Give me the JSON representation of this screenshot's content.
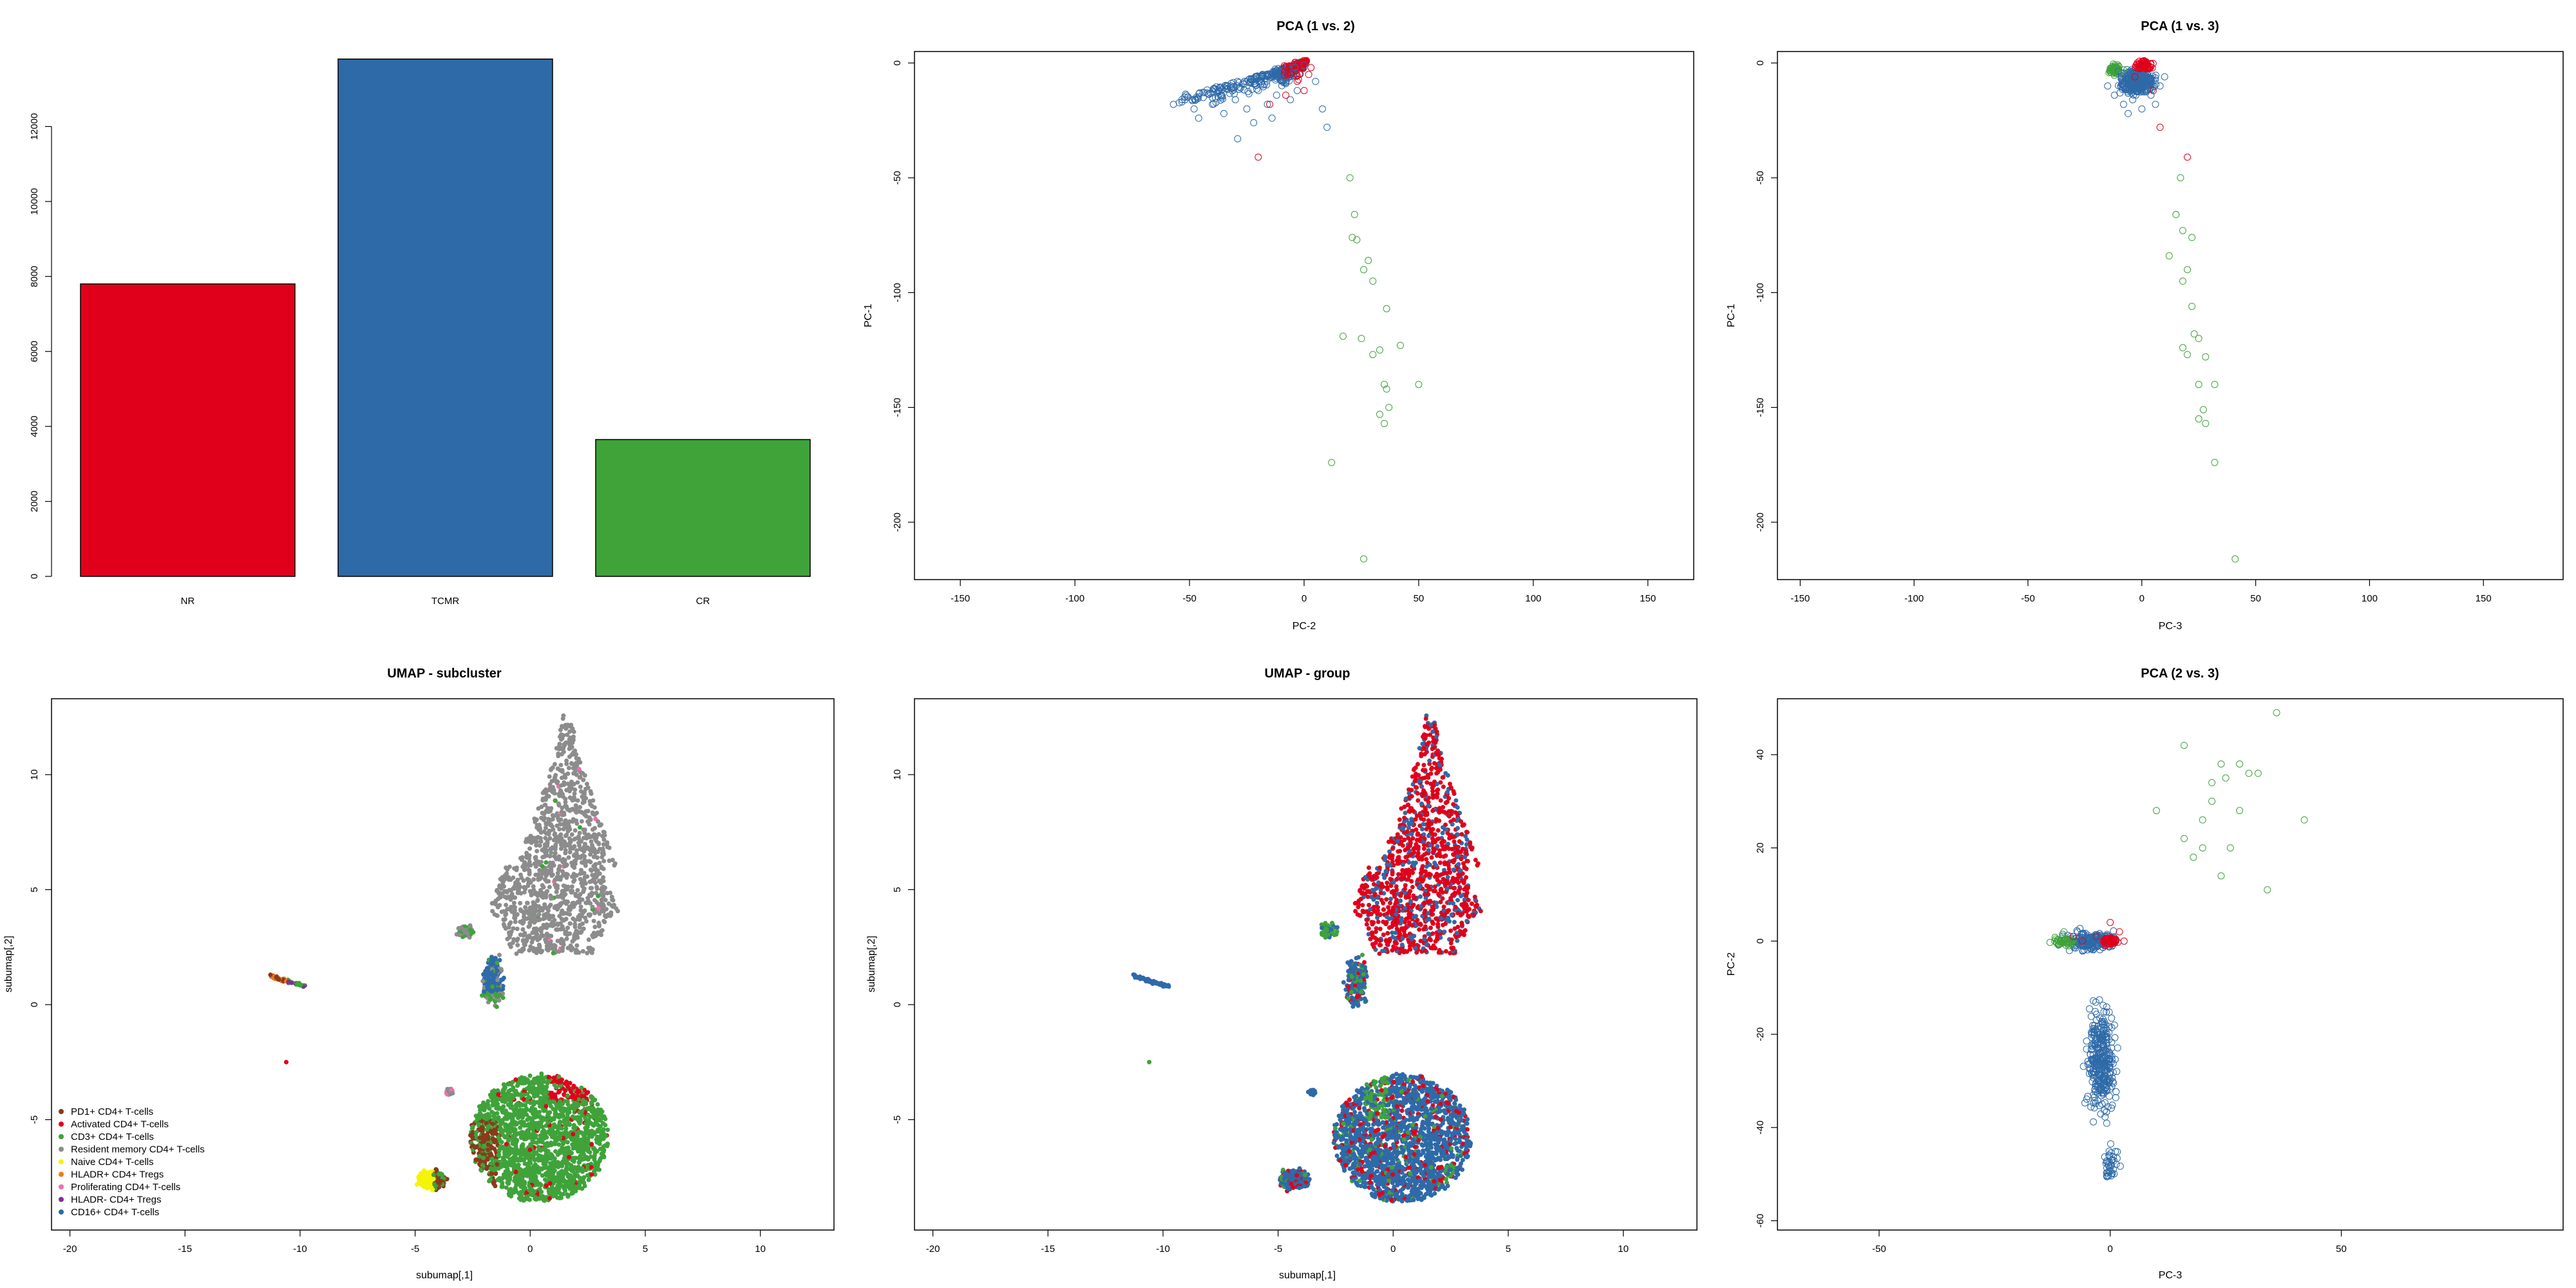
{
  "chart_data": [
    {
      "id": "bar",
      "type": "bar",
      "title": "",
      "categories": [
        "NR",
        "TCMR",
        "CR"
      ],
      "values": [
        7800,
        13800,
        3650
      ],
      "colors": [
        "#e0001b",
        "#2e6aa8",
        "#3fa33a"
      ],
      "ylim": [
        0,
        14000
      ],
      "yticks": [
        0,
        2000,
        4000,
        6000,
        8000,
        10000,
        12000
      ]
    },
    {
      "id": "pca12",
      "type": "scatter",
      "title": "PCA (1 vs. 2)",
      "xlabel": "PC-2",
      "ylabel": "PC-1",
      "xlim": [
        -170,
        170
      ],
      "ylim": [
        -225,
        5
      ],
      "xticks": [
        -150,
        -100,
        -50,
        0,
        50,
        100,
        150
      ],
      "yticks": [
        0,
        -50,
        -100,
        -150,
        -200
      ],
      "series": [
        {
          "color": "#3fa33a",
          "points": [
            [
              20,
              -50
            ],
            [
              22,
              -66
            ],
            [
              21,
              -76
            ],
            [
              23,
              -77
            ],
            [
              28,
              -86
            ],
            [
              26,
              -90
            ],
            [
              30,
              -95
            ],
            [
              36,
              -107
            ],
            [
              17,
              -119
            ],
            [
              25,
              -120
            ],
            [
              30,
              -127
            ],
            [
              33,
              -125
            ],
            [
              42,
              -123
            ],
            [
              35,
              -140
            ],
            [
              36,
              -142
            ],
            [
              50,
              -140
            ],
            [
              33,
              -153
            ],
            [
              35,
              -157
            ],
            [
              37,
              -150
            ],
            [
              12,
              -174
            ],
            [
              26,
              -216
            ]
          ]
        },
        {
          "color": "#2e6aa8",
          "points": [
            [
              -57,
              -18
            ],
            [
              -52,
              -16
            ],
            [
              -48,
              -20
            ],
            [
              -46,
              -24
            ],
            [
              -44,
              -15
            ],
            [
              -40,
              -18
            ],
            [
              -38,
              -13
            ],
            [
              -35,
              -22
            ],
            [
              -32,
              -10
            ],
            [
              -30,
              -16
            ],
            [
              -29,
              -33
            ],
            [
              -26,
              -8
            ],
            [
              -25,
              -20
            ],
            [
              -22,
              -26
            ],
            [
              -20,
              -12
            ],
            [
              -18,
              -6
            ],
            [
              -16,
              -18
            ],
            [
              -14,
              -24
            ],
            [
              -12,
              -14
            ],
            [
              -10,
              -4
            ],
            [
              -8,
              -9
            ],
            [
              -6,
              -16
            ],
            [
              -4,
              -2
            ],
            [
              -3,
              -12
            ],
            [
              -2,
              -5
            ],
            [
              0,
              -1
            ],
            [
              5,
              -8
            ],
            [
              8,
              -20
            ],
            [
              10,
              -28
            ]
          ]
        },
        {
          "color": "#e0001b",
          "points": [
            [
              -20,
              -41
            ],
            [
              -15,
              -18
            ],
            [
              -8,
              -14
            ],
            [
              -3,
              -8
            ],
            [
              0,
              -12
            ],
            [
              2,
              -5
            ],
            [
              3,
              -2
            ],
            [
              -1,
              0
            ]
          ]
        }
      ],
      "fans": [
        {
          "color": "#2e6aa8",
          "tip": [
            0,
            0
          ],
          "upper": [
            [
              -55,
              -15
            ],
            [
              -40,
              -11
            ],
            [
              -25,
              -7
            ],
            [
              -10,
              -3
            ]
          ],
          "lower": [
            [
              -55,
              -19
            ],
            [
              -40,
              -18
            ],
            [
              -25,
              -15
            ],
            [
              -10,
              -11
            ]
          ],
          "count": 320,
          "jitter": 4
        },
        {
          "color": "#e0001b",
          "tip": [
            1,
            1
          ],
          "upper": [
            [
              -10,
              -1
            ],
            [
              -5,
              0
            ]
          ],
          "lower": [
            [
              -8,
              -8
            ],
            [
              -3,
              -9
            ]
          ],
          "count": 60,
          "jitter": 2
        }
      ]
    },
    {
      "id": "pca13",
      "type": "scatter",
      "title": "PCA (1 vs. 3)",
      "xlabel": "PC-3",
      "ylabel": "PC-1",
      "xlim": [
        -160,
        185
      ],
      "ylim": [
        -225,
        5
      ],
      "xticks": [
        -150,
        -100,
        -50,
        0,
        50,
        100,
        150
      ],
      "yticks": [
        0,
        -50,
        -100,
        -150,
        -200
      ],
      "series": [
        {
          "color": "#3fa33a",
          "points": [
            [
              17,
              -50
            ],
            [
              15,
              -66
            ],
            [
              18,
              -73
            ],
            [
              22,
              -76
            ],
            [
              12,
              -84
            ],
            [
              20,
              -90
            ],
            [
              18,
              -95
            ],
            [
              22,
              -106
            ],
            [
              23,
              -118
            ],
            [
              25,
              -120
            ],
            [
              18,
              -124
            ],
            [
              20,
              -127
            ],
            [
              28,
              -128
            ],
            [
              25,
              -140
            ],
            [
              32,
              -140
            ],
            [
              27,
              -151
            ],
            [
              25,
              -155
            ],
            [
              28,
              -157
            ],
            [
              32,
              -174
            ],
            [
              41,
              -216
            ],
            [
              -10,
              -5
            ],
            [
              -8,
              -3
            ]
          ]
        },
        {
          "color": "#2e6aa8",
          "points": [
            [
              -15,
              -10
            ],
            [
              -12,
              -14
            ],
            [
              -8,
              -18
            ],
            [
              -6,
              -22
            ],
            [
              -4,
              -16
            ],
            [
              -2,
              -12
            ],
            [
              0,
              -20
            ],
            [
              2,
              -8
            ],
            [
              4,
              -14
            ],
            [
              6,
              -18
            ],
            [
              8,
              -10
            ],
            [
              10,
              -6
            ]
          ]
        },
        {
          "color": "#e0001b",
          "points": [
            [
              -2,
              0
            ],
            [
              1,
              1
            ],
            [
              3,
              -2
            ],
            [
              5,
              -12
            ],
            [
              -3,
              -6
            ],
            [
              20,
              -41
            ],
            [
              8,
              -28
            ]
          ]
        }
      ],
      "blob": {
        "color": "#2e6aa8",
        "center": [
          -2,
          -8
        ],
        "rx": 14,
        "ry": 10,
        "count": 380
      }
    },
    {
      "id": "umap_sub",
      "type": "scatter",
      "title": "UMAP - subcluster",
      "xlabel": "subumap[,1]",
      "ylabel": "subumap[,2]",
      "xlim": [
        -20.8,
        13.2
      ],
      "ylim": [
        -9.8,
        13.3
      ],
      "xticks": [
        -20,
        -15,
        -10,
        -5,
        0,
        5,
        10
      ],
      "yticks": [
        -5,
        0,
        5,
        10
      ],
      "legend_position": "bottom-left",
      "legend": [
        {
          "label": "PD1+ CD4+ T-cells",
          "color": "#8b3a1b"
        },
        {
          "label": "Activated CD4+ T-cells",
          "color": "#e0001b"
        },
        {
          "label": "CD3+ CD4+ T-cells",
          "color": "#3fa33a"
        },
        {
          "label": "Resident memory CD4+ T-cells",
          "color": "#8c8c8c"
        },
        {
          "label": "Naive CD4+ T-cells",
          "color": "#f5f500"
        },
        {
          "label": "HLADR+ CD4+ Tregs",
          "color": "#f07d12"
        },
        {
          "label": "Proliferating CD4+ T-cells",
          "color": "#ef6fb0"
        },
        {
          "label": "HLADR- CD4+ Tregs",
          "color": "#7b3294"
        },
        {
          "label": "CD16+ CD4+ T-cells",
          "color": "#2e6aa8"
        }
      ]
    },
    {
      "id": "umap_group",
      "type": "scatter",
      "title": "UMAP - group",
      "xlabel": "subumap[,1]",
      "ylabel": "subumap[,2]",
      "xlim": [
        -20.8,
        13.2
      ],
      "ylim": [
        -9.8,
        13.3
      ],
      "xticks": [
        -20,
        -15,
        -10,
        -5,
        0,
        5,
        10
      ],
      "yticks": [
        -5,
        0,
        5,
        10
      ]
    },
    {
      "id": "pca23",
      "type": "scatter",
      "title": "PCA (2 vs. 3)",
      "xlabel": "PC-3",
      "ylabel": "PC-2",
      "xlim": [
        -72,
        98
      ],
      "ylim": [
        -62,
        52
      ],
      "xticks": [
        -50,
        0,
        50
      ],
      "yticks": [
        -60,
        -40,
        -20,
        0,
        20,
        40
      ],
      "series": [
        {
          "color": "#3fa33a",
          "points": [
            [
              10,
              28
            ],
            [
              16,
              22
            ],
            [
              18,
              18
            ],
            [
              20,
              20
            ],
            [
              20,
              26
            ],
            [
              22,
              30
            ],
            [
              16,
              42
            ],
            [
              22,
              34
            ],
            [
              24,
              38
            ],
            [
              25,
              35
            ],
            [
              28,
              28
            ],
            [
              26,
              20
            ],
            [
              28,
              38
            ],
            [
              30,
              36
            ],
            [
              32,
              36
            ],
            [
              36,
              49
            ],
            [
              42,
              26
            ],
            [
              34,
              11
            ],
            [
              24,
              14
            ],
            [
              -12,
              0
            ],
            [
              -10,
              2
            ],
            [
              -9,
              -1
            ]
          ]
        },
        {
          "color": "#e0001b",
          "points": [
            [
              -3,
              1
            ],
            [
              -6,
              0
            ],
            [
              0,
              4
            ],
            [
              2,
              2
            ],
            [
              -1,
              -1
            ],
            [
              3,
              0
            ],
            [
              -8,
              1
            ]
          ]
        }
      ],
      "blobs": [
        {
          "color": "#2e6aa8",
          "center": [
            -4,
            0
          ],
          "rx": 12,
          "ry": 4,
          "count": 180
        },
        {
          "color": "#2e6aa8",
          "center": [
            -2,
            -25
          ],
          "rx": 6,
          "ry": 22,
          "count": 320
        },
        {
          "color": "#2e6aa8",
          "center": [
            0,
            -48
          ],
          "rx": 4,
          "ry": 8,
          "count": 40
        },
        {
          "color": "#3fa33a",
          "center": [
            -10,
            0
          ],
          "rx": 5,
          "ry": 1.5,
          "count": 40
        },
        {
          "color": "#e0001b",
          "center": [
            0,
            0
          ],
          "rx": 3,
          "ry": 1.5,
          "count": 60
        }
      ]
    }
  ]
}
